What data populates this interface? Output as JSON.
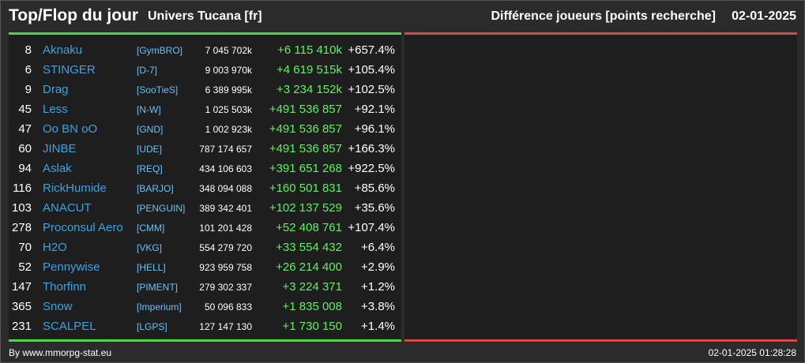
{
  "header": {
    "title": "Top/Flop du jour",
    "universe": "Univers Tucana [fr]",
    "category": "Différence joueurs [points recherche]",
    "date": "02-01-2025"
  },
  "colors": {
    "background": "#2b2b2b",
    "panel": "#1e1e1e",
    "top_border": "#4cd44c",
    "flop_border": "#d9463f",
    "name": "#3aa3e3",
    "alliance": "#6cc0f5",
    "gain": "#5ff25f"
  },
  "top_rows": [
    {
      "rank": "8",
      "name": "Aknaku",
      "alliance": "[GymBRO]",
      "points": "7 045 702k",
      "diff": "+6 115 410k",
      "pct": "+657.4%"
    },
    {
      "rank": "6",
      "name": "STINGER",
      "alliance": "[D-7]",
      "points": "9 003 970k",
      "diff": "+4 619 515k",
      "pct": "+105.4%"
    },
    {
      "rank": "9",
      "name": "Drag",
      "alliance": "[SooTieS]",
      "points": "6 389 995k",
      "diff": "+3 234 152k",
      "pct": "+102.5%"
    },
    {
      "rank": "45",
      "name": "Less",
      "alliance": "[N-W]",
      "points": "1 025 503k",
      "diff": "+491 536 857",
      "pct": "+92.1%"
    },
    {
      "rank": "47",
      "name": "Oo BN oO",
      "alliance": "[GND]",
      "points": "1 002 923k",
      "diff": "+491 536 857",
      "pct": "+96.1%"
    },
    {
      "rank": "60",
      "name": "JINBE",
      "alliance": "[UDE]",
      "points": "787 174 657",
      "diff": "+491 536 857",
      "pct": "+166.3%"
    },
    {
      "rank": "94",
      "name": "Aslak",
      "alliance": "[REQ]",
      "points": "434 106 603",
      "diff": "+391 651 268",
      "pct": "+922.5%"
    },
    {
      "rank": "116",
      "name": "RickHumide",
      "alliance": "[BARJO]",
      "points": "348 094 088",
      "diff": "+160 501 831",
      "pct": "+85.6%"
    },
    {
      "rank": "103",
      "name": "ANACUT",
      "alliance": "[PENGUIN]",
      "points": "389 342 401",
      "diff": "+102 137 529",
      "pct": "+35.6%"
    },
    {
      "rank": "278",
      "name": "Proconsul Aero",
      "alliance": "[CMM]",
      "points": "101 201 428",
      "diff": "+52 408 761",
      "pct": "+107.4%"
    },
    {
      "rank": "70",
      "name": "H2O",
      "alliance": "[VKG]",
      "points": "554 279 720",
      "diff": "+33 554 432",
      "pct": "+6.4%"
    },
    {
      "rank": "52",
      "name": "Pennywise",
      "alliance": "[HELL]",
      "points": "923 959 758",
      "diff": "+26 214 400",
      "pct": "+2.9%"
    },
    {
      "rank": "147",
      "name": "Thorfinn",
      "alliance": "[PIMENT]",
      "points": "279 302 337",
      "diff": "+3 224 371",
      "pct": "+1.2%"
    },
    {
      "rank": "365",
      "name": "Snow",
      "alliance": "[Imperium]",
      "points": "50 096 833",
      "diff": "+1 835 008",
      "pct": "+3.8%"
    },
    {
      "rank": "231",
      "name": "SCALPEL",
      "alliance": "[LGPS]",
      "points": "127 147 130",
      "diff": "+1 730 150",
      "pct": "+1.4%"
    }
  ],
  "footer": {
    "credit": "By www.mmorpg-stat.eu",
    "timestamp": "02-01-2025 01:28:28"
  }
}
